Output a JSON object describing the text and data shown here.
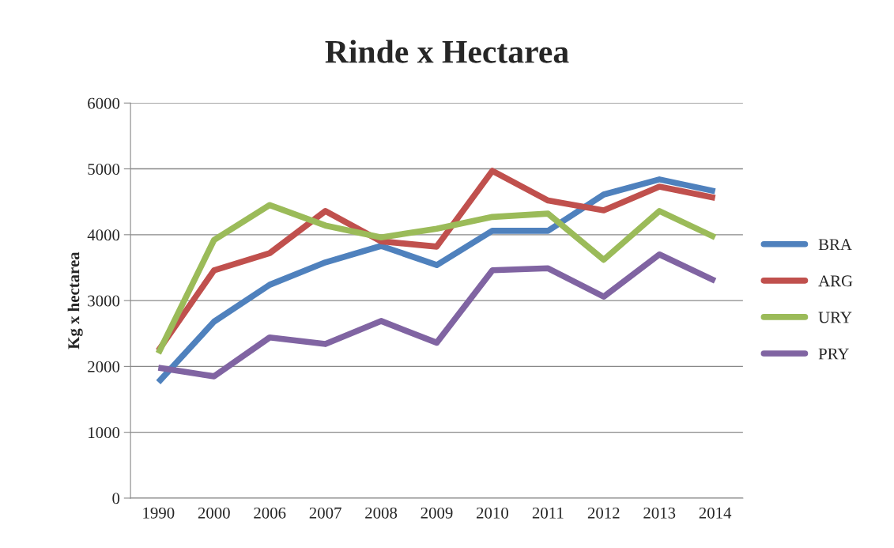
{
  "chart_data": {
    "type": "line",
    "title": "Rinde x Hectarea",
    "ylabel": "Kg x hectarea",
    "categories": [
      "1990",
      "2000",
      "2006",
      "2007",
      "2008",
      "2009",
      "2010",
      "2011",
      "2012",
      "2013",
      "2014"
    ],
    "series": [
      {
        "name": "BRA",
        "color": "#4f81bd",
        "values": [
          1760,
          2680,
          3240,
          3580,
          3830,
          3540,
          4060,
          4060,
          4610,
          4840,
          4660
        ]
      },
      {
        "name": "ARG",
        "color": "#c0504d",
        "values": [
          2240,
          3460,
          3720,
          4360,
          3900,
          3820,
          4970,
          4520,
          4370,
          4730,
          4560
        ]
      },
      {
        "name": "URY",
        "color": "#9bbb59",
        "values": [
          2200,
          3920,
          4450,
          4140,
          3960,
          4090,
          4270,
          4320,
          3620,
          4360,
          3960
        ]
      },
      {
        "name": "PRY",
        "color": "#8064a2",
        "values": [
          1980,
          1850,
          2440,
          2340,
          2690,
          2360,
          3460,
          3490,
          3060,
          3700,
          3300
        ]
      }
    ],
    "ylim": [
      0,
      6000
    ],
    "yticks": [
      0,
      1000,
      2000,
      3000,
      4000,
      5000,
      6000
    ],
    "grid": "y",
    "legend": "right",
    "marker": "none",
    "line_style": "solid"
  }
}
